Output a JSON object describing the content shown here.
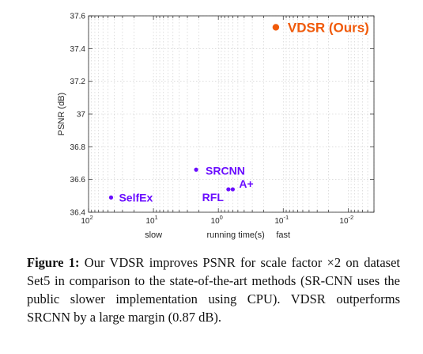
{
  "chart_data": {
    "type": "scatter",
    "xscale": "log",
    "x_reversed": true,
    "xlim": [
      100,
      0.004
    ],
    "ylim": [
      36.4,
      37.6
    ],
    "xlabel": "running time(s)",
    "ylabel": "PSNR (dB)",
    "x_tick_labels": [
      {
        "base": "10",
        "exp": "2",
        "value": 100
      },
      {
        "base": "10",
        "exp": "1",
        "value": 10
      },
      {
        "base": "10",
        "exp": "0",
        "value": 1
      },
      {
        "base": "10",
        "exp": "-1",
        "value": 0.1
      },
      {
        "base": "10",
        "exp": "-2",
        "value": 0.01
      }
    ],
    "y_ticks": [
      {
        "label": "36.4",
        "value": 36.4
      },
      {
        "label": "36.6",
        "value": 36.6
      },
      {
        "label": "36.8",
        "value": 36.8
      },
      {
        "label": "37",
        "value": 37.0
      },
      {
        "label": "37.2",
        "value": 37.2
      },
      {
        "label": "37.4",
        "value": 37.4
      },
      {
        "label": "37.6",
        "value": 37.6
      }
    ],
    "speed_labels": [
      {
        "text": "slow",
        "x": 10
      },
      {
        "text": "fast",
        "x": 0.1
      }
    ],
    "grid": true,
    "points": [
      {
        "name": "SelfEx",
        "x": 45,
        "y": 36.49,
        "color": "#6a0dff",
        "big": false
      },
      {
        "name": "SRCNN",
        "x": 2.2,
        "y": 36.66,
        "color": "#6a0dff",
        "big": false
      },
      {
        "name": "RFL",
        "x": 0.7,
        "y": 36.54,
        "color": "#6a0dff",
        "big": false
      },
      {
        "name": "A+",
        "x": 0.6,
        "y": 36.54,
        "color": "#6a0dff",
        "big": false
      },
      {
        "name": "VDSR (Ours)",
        "x": 0.13,
        "y": 37.53,
        "color": "#f05a0a",
        "big": true
      }
    ]
  },
  "caption": {
    "label": "Figure 1:",
    "text": " Our VDSR improves PSNR for scale factor ×2 on dataset Set5 in comparison to the state-of-the-art methods (SR-CNN uses the public slower implementation using CPU). VDSR outperforms SRCNN by a large margin (0.87 dB)."
  }
}
